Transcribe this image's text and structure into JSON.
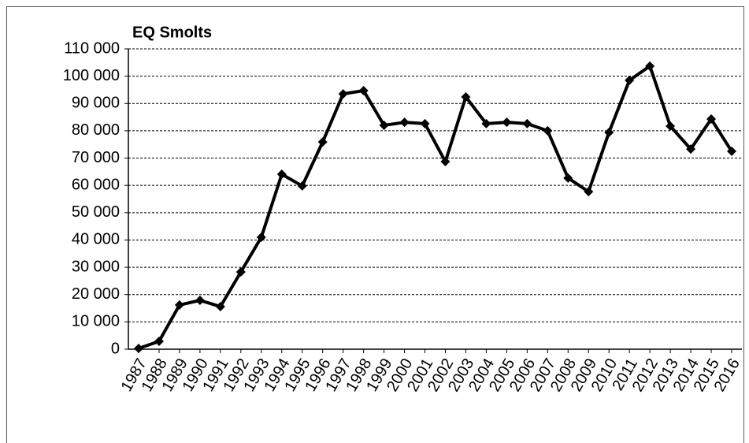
{
  "chart_data": {
    "type": "line",
    "title": "EQ Smolts",
    "categories": [
      "1987",
      "1988",
      "1989",
      "1990",
      "1991",
      "1992",
      "1993",
      "1994",
      "1995",
      "1996",
      "1997",
      "1998",
      "1999",
      "2000",
      "2001",
      "2002",
      "2003",
      "2004",
      "2005",
      "2006",
      "2007",
      "2008",
      "2009",
      "2010",
      "2011",
      "2012",
      "2013",
      "2014",
      "2015",
      "2016"
    ],
    "values": [
      300,
      2900,
      16200,
      17900,
      15600,
      28300,
      41000,
      64100,
      59800,
      75900,
      93500,
      94700,
      82000,
      83100,
      82600,
      68700,
      92400,
      82600,
      83100,
      82600,
      80000,
      62700,
      57700,
      79400,
      98500,
      103700,
      81700,
      73300,
      84300,
      72500
    ],
    "color": "#000000",
    "ylim": [
      0,
      110000
    ],
    "yticks": [
      0,
      {
        "value": 10000,
        "label": "10 000"
      },
      {
        "value": 20000,
        "label": "20 000"
      },
      {
        "value": 30000,
        "label": "30 000"
      },
      {
        "value": 40000,
        "label": "40 000"
      },
      {
        "value": 50000,
        "label": "50 000"
      },
      {
        "value": 60000,
        "label": "60 000"
      },
      {
        "value": 70000,
        "label": "70 000"
      },
      {
        "value": 80000,
        "label": "80 000"
      },
      {
        "value": 90000,
        "label": "90 000"
      },
      {
        "value": 100000,
        "label": "100 000"
      },
      {
        "value": 110000,
        "label": "110 000"
      }
    ],
    "grid": true
  }
}
